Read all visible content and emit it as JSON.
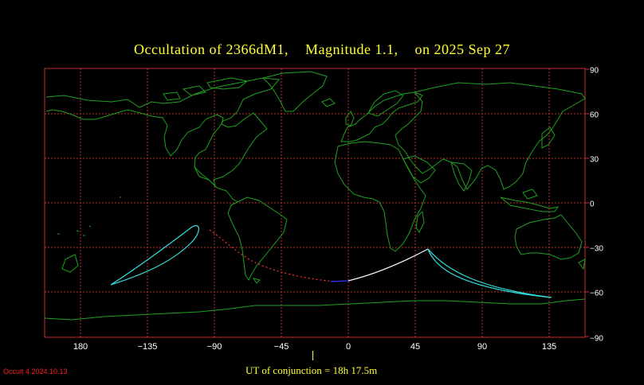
{
  "title": {
    "object": "Occultation  of  2366dM1,",
    "magnitude": "Magnitude 1.1,",
    "date": "on  2025 Sep 27"
  },
  "axes": {
    "lon_ticks": [
      "180",
      "−135",
      "−90",
      "−45",
      "0",
      "45",
      "90",
      "135"
    ],
    "lat_ticks": [
      "90",
      "60",
      "30",
      "0",
      "−30",
      "−60",
      "−90"
    ]
  },
  "conjunction": "UT of conjunction = 18h 17.5m",
  "version": "Occult 4.2024.10.13",
  "colors": {
    "title": "#ffff33",
    "grid": "#c03030",
    "coast": "#1fa01f",
    "path_day": "#ffffff",
    "path_cyan": "#33dddd",
    "path_dotted": "#ff3030",
    "path_blue": "#3030ff"
  }
}
